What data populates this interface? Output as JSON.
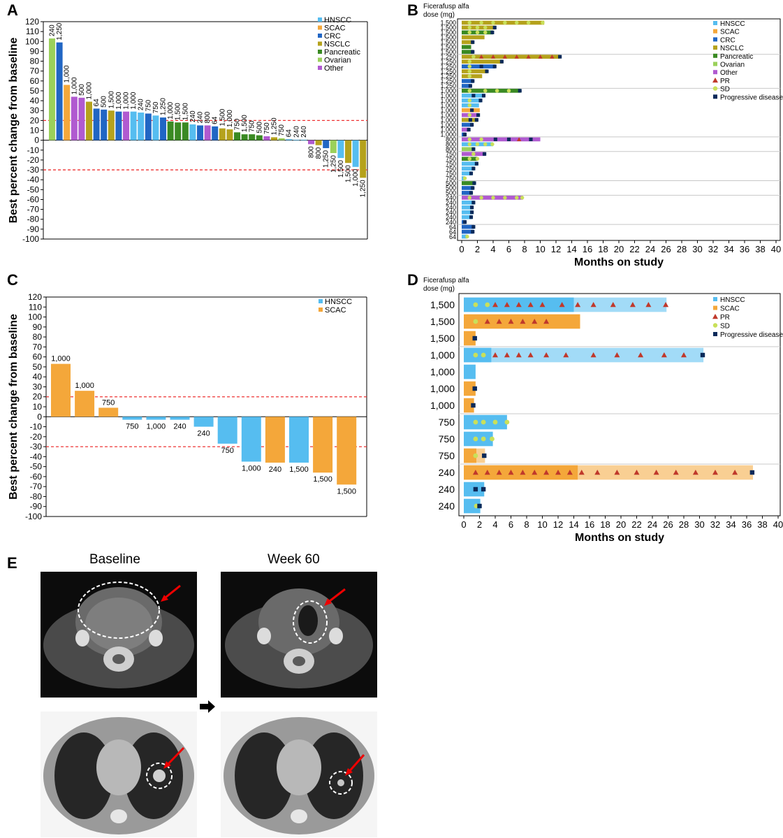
{
  "colors": {
    "HNSCC": "#56bdf0",
    "SCAC": "#f4a73a",
    "CRC": "#2166c4",
    "NSCLC": "#b5a21c",
    "Pancreatic": "#3a8a23",
    "Ovarian": "#9bd15b",
    "Other": "#b05ad0",
    "PR": "#c0392b",
    "SD": "#c9e05a",
    "PD": "#0b2a5a",
    "ref": "#e33"
  },
  "panels": {
    "A": "A",
    "B": "B",
    "C": "C",
    "D": "D",
    "E": "E"
  },
  "chart_data": [
    {
      "id": "A",
      "type": "bar",
      "ylabel": "Best percent change from baseline",
      "ylim": [
        -100,
        120
      ],
      "yticks": [
        120,
        110,
        100,
        90,
        80,
        70,
        60,
        50,
        40,
        30,
        20,
        10,
        0,
        -10,
        -20,
        -30,
        -40,
        -50,
        -60,
        -70,
        -80,
        -90,
        -100
      ],
      "ref_lines": [
        20,
        -30
      ],
      "legend": [
        "HNSCC",
        "SCAC",
        "CRC",
        "NSCLC",
        "Pancreatic",
        "Ovarian",
        "Other"
      ],
      "bars": [
        {
          "v": 103,
          "c": "Ovarian",
          "d": "240"
        },
        {
          "v": 99,
          "c": "CRC",
          "d": "1,250"
        },
        {
          "v": 56,
          "c": "SCAC",
          "d": "1,000"
        },
        {
          "v": 44,
          "c": "Other",
          "d": "1,000"
        },
        {
          "v": 43,
          "c": "Other",
          "d": "500"
        },
        {
          "v": 39,
          "c": "NSCLC",
          "d": "1,000"
        },
        {
          "v": 32,
          "c": "CRC",
          "d": "64"
        },
        {
          "v": 31,
          "c": "CRC",
          "d": "500"
        },
        {
          "v": 30,
          "c": "NSCLC",
          "d": "1,500"
        },
        {
          "v": 29,
          "c": "CRC",
          "d": "1,000"
        },
        {
          "v": 29,
          "c": "Other",
          "d": "1,000"
        },
        {
          "v": 29,
          "c": "HNSCC",
          "d": "1,000"
        },
        {
          "v": 28,
          "c": "HNSCC",
          "d": "240"
        },
        {
          "v": 27,
          "c": "CRC",
          "d": "750"
        },
        {
          "v": 25,
          "c": "HNSCC",
          "d": "750"
        },
        {
          "v": 23,
          "c": "CRC",
          "d": "1,250"
        },
        {
          "v": 19,
          "c": "Pancreatic",
          "d": "1,000"
        },
        {
          "v": 18,
          "c": "Pancreatic",
          "d": "1,500"
        },
        {
          "v": 18,
          "c": "Pancreatic",
          "d": "1,500"
        },
        {
          "v": 16,
          "c": "HNSCC",
          "d": "240"
        },
        {
          "v": 15,
          "c": "CRC",
          "d": "240"
        },
        {
          "v": 15,
          "c": "Other",
          "d": "800"
        },
        {
          "v": 14,
          "c": "CRC",
          "d": "64"
        },
        {
          "v": 12,
          "c": "NSCLC",
          "d": "1,500"
        },
        {
          "v": 11,
          "c": "NSCLC",
          "d": "1,000"
        },
        {
          "v": 8,
          "c": "Pancreatic",
          "d": "750"
        },
        {
          "v": 6,
          "c": "Pancreatic",
          "d": "1,500"
        },
        {
          "v": 6,
          "c": "Pancreatic",
          "d": "750"
        },
        {
          "v": 5,
          "c": "Pancreatic",
          "d": "500"
        },
        {
          "v": 4,
          "c": "Other",
          "d": "750"
        },
        {
          "v": 3,
          "c": "NSCLC",
          "d": "1,250"
        },
        {
          "v": 2,
          "c": "Ovarian",
          "d": "750"
        },
        {
          "v": 1,
          "c": "HNSCC",
          "d": "64"
        },
        {
          "v": 0.5,
          "c": "HNSCC",
          "d": "240"
        },
        {
          "v": 0.5,
          "c": "HNSCC",
          "d": "240"
        },
        {
          "v": -4,
          "c": "Other",
          "d": "800"
        },
        {
          "v": -5,
          "c": "NSCLC",
          "d": "800"
        },
        {
          "v": -8,
          "c": "CRC",
          "d": "1,250"
        },
        {
          "v": -13,
          "c": "Ovarian",
          "d": "1,250"
        },
        {
          "v": -18,
          "c": "HNSCC",
          "d": "1,500"
        },
        {
          "v": -23,
          "c": "NSCLC",
          "d": "1,500"
        },
        {
          "v": -27,
          "c": "HNSCC",
          "d": "1,000"
        },
        {
          "v": -38,
          "c": "NSCLC",
          "d": "1,250"
        }
      ]
    },
    {
      "id": "B",
      "type": "swimmer",
      "doseheader": [
        "Ficerafusp alfa",
        "dose (mg)"
      ],
      "xlabel": "Months on study",
      "xticks": [
        0,
        2,
        4,
        6,
        8,
        10,
        12,
        14,
        16,
        18,
        20,
        22,
        24,
        26,
        28,
        30,
        32,
        34,
        36,
        38,
        40
      ],
      "legend": [
        "HNSCC",
        "SCAC",
        "CRC",
        "NSCLC",
        "Pancreatic",
        "Ovarian",
        "Other",
        "PR",
        "SD",
        "Progressive disease"
      ],
      "rows": [
        {
          "d": "1,500",
          "c": "NSCLC",
          "m": 10.5,
          "sd": [
            1,
            2.5,
            4,
            5.5,
            7,
            8.5,
            10.3
          ]
        },
        {
          "d": "1,500",
          "c": "NSCLC",
          "m": 4.3,
          "sd": [
            1,
            2,
            3
          ],
          "pd": [
            4.2
          ]
        },
        {
          "d": "1,500",
          "c": "Pancreatic",
          "m": 4.0,
          "sd": [
            1,
            2,
            3
          ],
          "pd": [
            3.9
          ]
        },
        {
          "d": "1,500",
          "c": "NSCLC",
          "m": 2.9
        },
        {
          "d": "1,500",
          "c": "NSCLC",
          "m": 1.5,
          "pd": [
            1.4
          ]
        },
        {
          "d": "1,500",
          "c": "Pancreatic",
          "m": 1.2
        },
        {
          "d": "1,500",
          "c": "Pancreatic",
          "m": 1.5,
          "pd": [
            1.4
          ]
        },
        {
          "d": "1,250",
          "c": "NSCLC",
          "m": 12.5,
          "sd": [
            1.5
          ],
          "pr": [
            2.5,
            4,
            5.5,
            7,
            8.5,
            10,
            11.5
          ],
          "pd": [
            12.5
          ]
        },
        {
          "d": "1,250",
          "c": "NSCLC",
          "m": 5.2,
          "sd": [
            1
          ],
          "pd": [
            5.1
          ]
        },
        {
          "d": "1,250",
          "c": "CRC",
          "m": 4.3,
          "sd": [
            1
          ],
          "pd": [
            2.5,
            4.2
          ]
        },
        {
          "d": "1,250",
          "c": "NSCLC",
          "m": 3.3,
          "sd": [
            1
          ],
          "pd": [
            3.2
          ]
        },
        {
          "d": "1,250",
          "c": "NSCLC",
          "m": 2.6,
          "sd": [
            1
          ]
        },
        {
          "d": "1,250",
          "c": "CRC",
          "m": 1.5,
          "pd": [
            1.4
          ]
        },
        {
          "d": "1,250",
          "c": "CRC",
          "m": 1.2,
          "pd": [
            1.1
          ]
        },
        {
          "d": "1,000",
          "c": "Pancreatic",
          "m": 7.5,
          "sd": [
            1,
            3,
            4.5,
            6
          ],
          "pd": [
            7.4
          ]
        },
        {
          "d": "1,000",
          "c": "HNSCC",
          "m": 2.9,
          "pd": [
            1.5,
            2.8
          ]
        },
        {
          "d": "1,000",
          "c": "HNSCC",
          "m": 2.5,
          "sd": [
            1
          ],
          "pd": [
            2.4
          ]
        },
        {
          "d": "1,000",
          "c": "HNSCC",
          "m": 2.2,
          "sd": [
            1
          ]
        },
        {
          "d": "1,000",
          "c": "SCAC",
          "m": 2.3,
          "pd": [
            1.3
          ]
        },
        {
          "d": "1,000",
          "c": "Other",
          "m": 2.2,
          "sd": [
            1
          ],
          "pd": [
            2.1
          ]
        },
        {
          "d": "1,000",
          "c": "NSCLC",
          "m": 2.0,
          "pd": [
            1.1,
            1.9
          ]
        },
        {
          "d": "1,000",
          "c": "CRC",
          "m": 1.4,
          "pd": [
            1.3
          ]
        },
        {
          "d": "1,000",
          "c": "Other",
          "m": 1.0,
          "pd": [
            0.9
          ]
        },
        {
          "d": "1,000",
          "c": "CRC",
          "m": 0.5,
          "pd": [
            0.4
          ]
        },
        {
          "d": "800",
          "c": "Other",
          "m": 10.0,
          "sd": [
            1,
            2.5
          ],
          "pd": [
            4.3,
            6
          ],
          "pr": [
            7.3
          ],
          "pdx": [
            8.8
          ]
        },
        {
          "d": "800",
          "c": "HNSCC",
          "m": 4.0,
          "sd": [
            1,
            2,
            3,
            3.9
          ]
        },
        {
          "d": "800",
          "c": "Ovarian",
          "m": 1.6,
          "pd": [
            1.5
          ]
        },
        {
          "d": "750",
          "c": "Other",
          "m": 3.0,
          "sd": [
            1.5
          ],
          "pd": [
            2.9
          ]
        },
        {
          "d": "750",
          "c": "Pancreatic",
          "m": 2.0,
          "sd": [
            1,
            2
          ]
        },
        {
          "d": "750",
          "c": "HNSCC",
          "m": 2.0,
          "pd": [
            1.9
          ]
        },
        {
          "d": "750",
          "c": "HNSCC",
          "m": 1.6,
          "pd": [
            1.5
          ]
        },
        {
          "d": "750",
          "c": "HNSCC",
          "m": 1.3,
          "pd": [
            1.2
          ]
        },
        {
          "d": "750",
          "c": "HNSCC",
          "m": 0.4,
          "sd": [
            0.4
          ]
        },
        {
          "d": "500",
          "c": "Pancreatic",
          "m": 1.7,
          "pd": [
            1.6
          ]
        },
        {
          "d": "500",
          "c": "CRC",
          "m": 1.5,
          "pd": [
            1.4
          ]
        },
        {
          "d": "500",
          "c": "CRC",
          "m": 1.3,
          "pd": [
            1.2
          ]
        },
        {
          "d": "240",
          "c": "Other",
          "m": 7.8,
          "sd": [
            1,
            2.5,
            4,
            5.5,
            7,
            7.7
          ]
        },
        {
          "d": "240",
          "c": "HNSCC",
          "m": 1.6,
          "pd": [
            1.5
          ]
        },
        {
          "d": "240",
          "c": "HNSCC",
          "m": 1.4,
          "pd": [
            1.3
          ]
        },
        {
          "d": "240",
          "c": "HNSCC",
          "m": 1.4,
          "pd": [
            1.3
          ]
        },
        {
          "d": "240",
          "c": "HNSCC",
          "m": 1.3,
          "pd": [
            1.2
          ]
        },
        {
          "d": "240",
          "c": "CRC",
          "m": 0.5,
          "pd": [
            0.4
          ]
        },
        {
          "d": "64",
          "c": "CRC",
          "m": 1.6,
          "pd": [
            1.5
          ]
        },
        {
          "d": "64",
          "c": "CRC",
          "m": 1.5,
          "pd": [
            1.4
          ]
        },
        {
          "d": "64",
          "c": "HNSCC",
          "m": 0.7,
          "sd": [
            0.7
          ]
        }
      ]
    },
    {
      "id": "C",
      "type": "bar",
      "ylabel": "Best percent change from baseline",
      "ylim": [
        -100,
        120
      ],
      "yticks": [
        120,
        110,
        100,
        90,
        80,
        70,
        60,
        50,
        40,
        30,
        20,
        10,
        0,
        -10,
        -20,
        -30,
        -40,
        -50,
        -60,
        -70,
        -80,
        -90,
        -100
      ],
      "ref_lines": [
        20,
        -30
      ],
      "legend": [
        "HNSCC",
        "SCAC"
      ],
      "bars": [
        {
          "v": 53,
          "c": "SCAC",
          "d": "1,000"
        },
        {
          "v": 26,
          "c": "SCAC",
          "d": "1,000"
        },
        {
          "v": 9,
          "c": "SCAC",
          "d": "750"
        },
        {
          "v": -3,
          "c": "HNSCC",
          "d": "750"
        },
        {
          "v": -3,
          "c": "HNSCC",
          "d": "1,000"
        },
        {
          "v": -3,
          "c": "HNSCC",
          "d": "240"
        },
        {
          "v": -10,
          "c": "HNSCC",
          "d": "240"
        },
        {
          "v": -27,
          "c": "HNSCC",
          "d": "750"
        },
        {
          "v": -45,
          "c": "HNSCC",
          "d": "1,000"
        },
        {
          "v": -46,
          "c": "SCAC",
          "d": "240"
        },
        {
          "v": -46,
          "c": "HNSCC",
          "d": "1,500"
        },
        {
          "v": -56,
          "c": "SCAC",
          "d": "1,500"
        },
        {
          "v": -68,
          "c": "SCAC",
          "d": "1,500"
        }
      ]
    },
    {
      "id": "D",
      "type": "swimmer",
      "doseheader": [
        "Ficerafusp alfa",
        "dose (mg)"
      ],
      "xlabel": "Months on study",
      "xticks": [
        0,
        2,
        4,
        6,
        8,
        10,
        12,
        14,
        16,
        18,
        20,
        22,
        24,
        26,
        28,
        30,
        32,
        34,
        36,
        38,
        40
      ],
      "legend": [
        "HNSCC",
        "SCAC",
        "PR",
        "SD",
        "Progressive disease"
      ],
      "rows": [
        {
          "d": "1,500",
          "c": "HNSCC",
          "m": 25.8,
          "split": 14,
          "sd": [
            1.5,
            3
          ],
          "pr": [
            4,
            5.5,
            7,
            8.5,
            10,
            12.5,
            14.5,
            16.5,
            19,
            21.5,
            23.5,
            25.7
          ]
        },
        {
          "d": "1,500",
          "c": "SCAC",
          "m": 14.8,
          "sd": [
            1.5
          ],
          "pr": [
            3,
            4.5,
            6,
            7.5,
            9,
            10.5
          ]
        },
        {
          "d": "1,500",
          "c": "SCAC",
          "m": 1.5,
          "pd": [
            1.4
          ]
        },
        {
          "d": "1,000",
          "c": "HNSCC",
          "m": 30.5,
          "split": 3.5,
          "sd": [
            1.5,
            2.5
          ],
          "pr": [
            4,
            5.5,
            7,
            8.5,
            10.5,
            13,
            16.5,
            19.5,
            22.5,
            25.5,
            28
          ],
          "pd": [
            30.4
          ]
        },
        {
          "d": "1,000",
          "c": "HNSCC",
          "m": 1.5
        },
        {
          "d": "1,000",
          "c": "SCAC",
          "m": 1.5,
          "pd": [
            1.4
          ]
        },
        {
          "d": "1,000",
          "c": "SCAC",
          "m": 1.3,
          "pd": [
            1.2
          ]
        },
        {
          "d": "750",
          "c": "HNSCC",
          "m": 5.5,
          "sd": [
            1.5,
            2.5,
            4,
            5.5
          ]
        },
        {
          "d": "750",
          "c": "HNSCC",
          "m": 3.7,
          "sd": [
            1.5,
            2.5,
            3.6
          ]
        },
        {
          "d": "750",
          "c": "SCAC",
          "m": 2.7,
          "split": 1.6,
          "sd": [
            1.5
          ],
          "pd": [
            2.6
          ]
        },
        {
          "d": "240",
          "c": "SCAC",
          "m": 36.8,
          "split": 14.5,
          "pr": [
            1.5,
            3,
            4.5,
            6,
            7.5,
            9,
            10.5,
            12,
            13.5,
            15,
            17,
            19.5,
            22,
            24.5,
            27,
            29.5,
            32,
            34.5
          ],
          "pd": [
            36.7
          ]
        },
        {
          "d": "240",
          "c": "HNSCC",
          "m": 2.6,
          "pd": [
            1.5,
            2.5
          ]
        },
        {
          "d": "240",
          "c": "HNSCC",
          "m": 2.1,
          "sd": [
            1.6
          ],
          "pd": [
            2
          ]
        }
      ]
    }
  ],
  "imaging": {
    "baseline": "Baseline",
    "week60": "Week 60"
  }
}
